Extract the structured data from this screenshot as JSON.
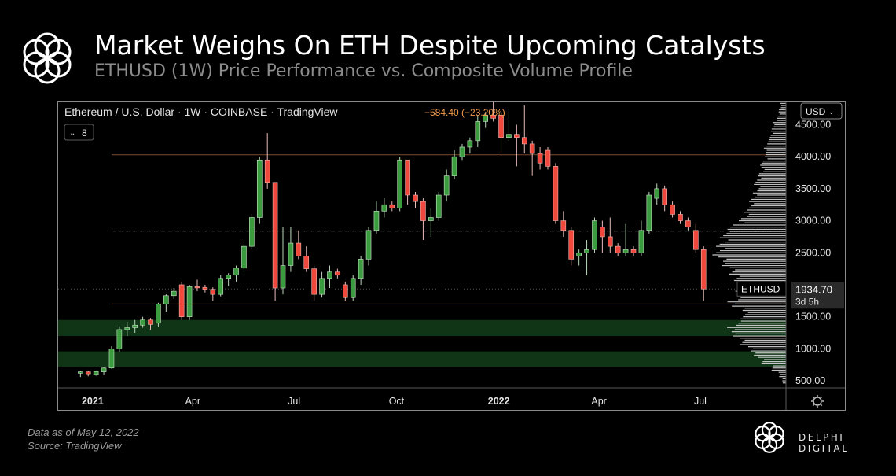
{
  "header": {
    "title": "Market Weighs On ETH Despite Upcoming Catalysts",
    "subtitle": "ETHUSD (1W) Price Performance vs. Composite Volume Profile"
  },
  "footer": {
    "data_note": "Data as of May 12, 2022",
    "source": "Source: TradingView",
    "brand": "DELPHI DIGITAL"
  },
  "chart_data": {
    "type": "candlestick",
    "info_line": "Ethereum / U.S. Dollar · 1W · COINBASE · TradingView",
    "change_text": "−584.40 (−23.20%)",
    "indicator_count": "8",
    "currency": "USD",
    "symbol": "ETHUSD",
    "last_price": "1934.70",
    "last_price_value": 1934.7,
    "countdown": "3d 5h",
    "y_tick_labels": [
      "4500.00",
      "4000.00",
      "3500.00",
      "3000.00",
      "2500.00",
      "1500.00",
      "1000.00",
      "500.00"
    ],
    "y_ticks": [
      4500,
      4000,
      3500,
      3000,
      2500,
      1500,
      1000,
      500
    ],
    "x_tick_labels": [
      "2021",
      "Apr",
      "Jul",
      "Oct",
      "2022",
      "Apr",
      "Jul"
    ],
    "x_tick_dates": [
      "2021-01-01",
      "2021-04-01",
      "2021-07-01",
      "2021-10-01",
      "2022-01-01",
      "2022-04-01",
      "2022-07-01"
    ],
    "x_range": [
      "2020-12-01",
      "2022-09-16"
    ],
    "y_range": [
      390,
      4850
    ],
    "colors": {
      "up": "#3b9c3f",
      "down": "#f0483c",
      "zone": "#0f3516",
      "level": "#7a4a2e",
      "poc": "#9a9a9a"
    },
    "horizontal_levels": [
      {
        "value": 4030,
        "style": "solid",
        "color": "#7a4a2e"
      },
      {
        "value": 1700,
        "style": "solid",
        "color": "#7a4a2e"
      },
      {
        "value": 2840,
        "style": "dashed",
        "color": "#9a9a9a"
      },
      {
        "value": 1935,
        "style": "dotted",
        "color": "#555555"
      }
    ],
    "support_zones": [
      {
        "low": 1200,
        "high": 1450
      },
      {
        "low": 720,
        "high": 960
      }
    ],
    "candles": [
      {
        "date": "2020-12-21",
        "o": 620,
        "h": 650,
        "l": 560,
        "c": 640
      },
      {
        "date": "2020-12-28",
        "o": 640,
        "h": 650,
        "l": 570,
        "c": 610
      },
      {
        "date": "2021-01-04",
        "o": 600,
        "h": 660,
        "l": 580,
        "c": 645
      },
      {
        "date": "2021-01-11",
        "o": 640,
        "h": 720,
        "l": 600,
        "c": 700
      },
      {
        "date": "2021-01-18",
        "o": 700,
        "h": 1040,
        "l": 690,
        "c": 1000
      },
      {
        "date": "2021-01-25",
        "o": 1000,
        "h": 1350,
        "l": 950,
        "c": 1300
      },
      {
        "date": "2021-02-01",
        "o": 1300,
        "h": 1420,
        "l": 1200,
        "c": 1330
      },
      {
        "date": "2021-02-08",
        "o": 1330,
        "h": 1450,
        "l": 1250,
        "c": 1370
      },
      {
        "date": "2021-02-15",
        "o": 1370,
        "h": 1500,
        "l": 1330,
        "c": 1450
      },
      {
        "date": "2021-02-22",
        "o": 1450,
        "h": 1480,
        "l": 1300,
        "c": 1380
      },
      {
        "date": "2021-03-01",
        "o": 1400,
        "h": 1720,
        "l": 1350,
        "c": 1700
      },
      {
        "date": "2021-03-08",
        "o": 1700,
        "h": 1850,
        "l": 1580,
        "c": 1830
      },
      {
        "date": "2021-03-15",
        "o": 1830,
        "h": 1950,
        "l": 1780,
        "c": 1900
      },
      {
        "date": "2021-03-22",
        "o": 2000,
        "h": 2050,
        "l": 1450,
        "c": 1500
      },
      {
        "date": "2021-03-29",
        "o": 1500,
        "h": 2000,
        "l": 1450,
        "c": 1970
      },
      {
        "date": "2021-04-05",
        "o": 1970,
        "h": 2080,
        "l": 1900,
        "c": 1960
      },
      {
        "date": "2021-04-12",
        "o": 1960,
        "h": 2000,
        "l": 1880,
        "c": 1930
      },
      {
        "date": "2021-04-19",
        "o": 1930,
        "h": 1960,
        "l": 1750,
        "c": 1850
      },
      {
        "date": "2021-04-26",
        "o": 1850,
        "h": 2150,
        "l": 1820,
        "c": 2100
      },
      {
        "date": "2021-05-03",
        "o": 2100,
        "h": 2180,
        "l": 1980,
        "c": 2150
      },
      {
        "date": "2021-05-10",
        "o": 2150,
        "h": 2300,
        "l": 2050,
        "c": 2260
      },
      {
        "date": "2021-05-17",
        "o": 2260,
        "h": 2700,
        "l": 2200,
        "c": 2600
      },
      {
        "date": "2021-05-24",
        "o": 2600,
        "h": 3100,
        "l": 2550,
        "c": 3050
      },
      {
        "date": "2021-05-31",
        "o": 3050,
        "h": 4000,
        "l": 2950,
        "c": 3950
      },
      {
        "date": "2021-06-07",
        "o": 3950,
        "h": 4370,
        "l": 3500,
        "c": 3600
      },
      {
        "date": "2021-06-14",
        "o": 3600,
        "h": 3600,
        "l": 1750,
        "c": 1950
      },
      {
        "date": "2021-06-21",
        "o": 1950,
        "h": 2900,
        "l": 1850,
        "c": 2300
      },
      {
        "date": "2021-06-28",
        "o": 2300,
        "h": 2900,
        "l": 2200,
        "c": 2650
      },
      {
        "date": "2021-07-05",
        "o": 2650,
        "h": 2850,
        "l": 2400,
        "c": 2450
      },
      {
        "date": "2021-07-12",
        "o": 2450,
        "h": 2600,
        "l": 2200,
        "c": 2250
      },
      {
        "date": "2021-07-19",
        "o": 2250,
        "h": 2300,
        "l": 1750,
        "c": 1850
      },
      {
        "date": "2021-07-26",
        "o": 1850,
        "h": 2200,
        "l": 1800,
        "c": 2100
      },
      {
        "date": "2021-08-02",
        "o": 2100,
        "h": 2300,
        "l": 1950,
        "c": 2200
      },
      {
        "date": "2021-08-09",
        "o": 2200,
        "h": 2250,
        "l": 2100,
        "c": 2150
      },
      {
        "date": "2021-08-16",
        "o": 2000,
        "h": 2050,
        "l": 1750,
        "c": 1800
      },
      {
        "date": "2021-08-23",
        "o": 1800,
        "h": 2150,
        "l": 1750,
        "c": 2100
      },
      {
        "date": "2021-08-30",
        "o": 2100,
        "h": 2450,
        "l": 2000,
        "c": 2400
      },
      {
        "date": "2021-09-06",
        "o": 2400,
        "h": 2900,
        "l": 2300,
        "c": 2850
      },
      {
        "date": "2021-09-13",
        "o": 2850,
        "h": 3300,
        "l": 2800,
        "c": 3150
      },
      {
        "date": "2021-09-20",
        "o": 3150,
        "h": 3350,
        "l": 3050,
        "c": 3250
      },
      {
        "date": "2021-09-27",
        "o": 3250,
        "h": 3300,
        "l": 3150,
        "c": 3200
      },
      {
        "date": "2021-10-04",
        "o": 3200,
        "h": 4000,
        "l": 3150,
        "c": 3950
      },
      {
        "date": "2021-10-11",
        "o": 3950,
        "h": 3950,
        "l": 3250,
        "c": 3400
      },
      {
        "date": "2021-10-18",
        "o": 3400,
        "h": 3450,
        "l": 3200,
        "c": 3300
      },
      {
        "date": "2021-10-25",
        "o": 3300,
        "h": 3350,
        "l": 2700,
        "c": 3000
      },
      {
        "date": "2021-11-01",
        "o": 3000,
        "h": 3200,
        "l": 2750,
        "c": 3050
      },
      {
        "date": "2021-11-08",
        "o": 3050,
        "h": 3450,
        "l": 3000,
        "c": 3400
      },
      {
        "date": "2021-11-15",
        "o": 3400,
        "h": 3800,
        "l": 3300,
        "c": 3700
      },
      {
        "date": "2021-11-22",
        "o": 3700,
        "h": 4100,
        "l": 3650,
        "c": 4000
      },
      {
        "date": "2021-11-29",
        "o": 4000,
        "h": 4200,
        "l": 3950,
        "c": 4150
      },
      {
        "date": "2021-12-06",
        "o": 4150,
        "h": 4300,
        "l": 4050,
        "c": 4250
      },
      {
        "date": "2021-12-13",
        "o": 4250,
        "h": 4650,
        "l": 4150,
        "c": 4550
      },
      {
        "date": "2021-12-20",
        "o": 4550,
        "h": 4700,
        "l": 4450,
        "c": 4650
      },
      {
        "date": "2021-12-27",
        "o": 4650,
        "h": 4850,
        "l": 4550,
        "c": 4600
      },
      {
        "date": "2022-01-03",
        "o": 4650,
        "h": 4700,
        "l": 4050,
        "c": 4300
      },
      {
        "date": "2022-01-10",
        "o": 4300,
        "h": 4750,
        "l": 4250,
        "c": 4350
      },
      {
        "date": "2022-01-17",
        "o": 4350,
        "h": 4500,
        "l": 3850,
        "c": 4300
      },
      {
        "date": "2022-01-24",
        "o": 4300,
        "h": 4800,
        "l": 4050,
        "c": 4200
      },
      {
        "date": "2022-01-31",
        "o": 4200,
        "h": 4250,
        "l": 3700,
        "c": 4050
      },
      {
        "date": "2022-02-07",
        "o": 4050,
        "h": 4150,
        "l": 3800,
        "c": 3900
      },
      {
        "date": "2022-02-14",
        "o": 4100,
        "h": 4150,
        "l": 3800,
        "c": 3850
      },
      {
        "date": "2022-02-21",
        "o": 3850,
        "h": 3900,
        "l": 2950,
        "c": 3000
      },
      {
        "date": "2022-02-28",
        "o": 3000,
        "h": 3150,
        "l": 2750,
        "c": 2850
      },
      {
        "date": "2022-03-07",
        "o": 2850,
        "h": 2900,
        "l": 2300,
        "c": 2400
      },
      {
        "date": "2022-03-14",
        "o": 2450,
        "h": 2550,
        "l": 2300,
        "c": 2500
      },
      {
        "date": "2022-03-21",
        "o": 2500,
        "h": 2700,
        "l": 2150,
        "c": 2550
      },
      {
        "date": "2022-03-28",
        "o": 2550,
        "h": 3050,
        "l": 2500,
        "c": 3000
      },
      {
        "date": "2022-04-04",
        "o": 2900,
        "h": 3000,
        "l": 2500,
        "c": 2750
      },
      {
        "date": "2022-04-11",
        "o": 2750,
        "h": 3050,
        "l": 2500,
        "c": 2600
      },
      {
        "date": "2022-04-18",
        "o": 2600,
        "h": 2650,
        "l": 2450,
        "c": 2500
      },
      {
        "date": "2022-04-25",
        "o": 2500,
        "h": 2950,
        "l": 2450,
        "c": 2550
      },
      {
        "date": "2022-05-02",
        "o": 2550,
        "h": 2600,
        "l": 2450,
        "c": 2500
      },
      {
        "date": "2022-05-09",
        "o": 2500,
        "h": 3000,
        "l": 2450,
        "c": 2850
      },
      {
        "date": "2022-05-16",
        "o": 2850,
        "h": 3450,
        "l": 2800,
        "c": 3400
      },
      {
        "date": "2022-05-23",
        "o": 3350,
        "h": 3580,
        "l": 3250,
        "c": 3500
      },
      {
        "date": "2022-05-30",
        "o": 3500,
        "h": 3550,
        "l": 3150,
        "c": 3250
      },
      {
        "date": "2022-06-06",
        "o": 3250,
        "h": 3300,
        "l": 3050,
        "c": 3100
      },
      {
        "date": "2022-06-13",
        "o": 3100,
        "h": 3150,
        "l": 2950,
        "c": 3000
      },
      {
        "date": "2022-06-20",
        "o": 3000,
        "h": 3050,
        "l": 2850,
        "c": 2900
      },
      {
        "date": "2022-06-27",
        "o": 2850,
        "h": 2950,
        "l": 2500,
        "c": 2550
      },
      {
        "date": "2022-07-04",
        "o": 2550,
        "h": 2600,
        "l": 1750,
        "c": 1935
      }
    ],
    "volume_profile": [
      {
        "price": 4800,
        "weight": 0.06
      },
      {
        "price": 4700,
        "weight": 0.08
      },
      {
        "price": 4600,
        "weight": 0.1
      },
      {
        "price": 4500,
        "weight": 0.14
      },
      {
        "price": 4400,
        "weight": 0.16
      },
      {
        "price": 4300,
        "weight": 0.18
      },
      {
        "price": 4200,
        "weight": 0.22
      },
      {
        "price": 4100,
        "weight": 0.24
      },
      {
        "price": 4000,
        "weight": 0.23
      },
      {
        "price": 3900,
        "weight": 0.28
      },
      {
        "price": 3800,
        "weight": 0.26
      },
      {
        "price": 3700,
        "weight": 0.3
      },
      {
        "price": 3600,
        "weight": 0.34
      },
      {
        "price": 3500,
        "weight": 0.32
      },
      {
        "price": 3400,
        "weight": 0.36
      },
      {
        "price": 3300,
        "weight": 0.4
      },
      {
        "price": 3200,
        "weight": 0.42
      },
      {
        "price": 3100,
        "weight": 0.45
      },
      {
        "price": 3000,
        "weight": 0.5
      },
      {
        "price": 2900,
        "weight": 0.62
      },
      {
        "price": 2800,
        "weight": 0.7
      },
      {
        "price": 2700,
        "weight": 0.72
      },
      {
        "price": 2600,
        "weight": 0.76
      },
      {
        "price": 2500,
        "weight": 0.8
      },
      {
        "price": 2400,
        "weight": 0.72
      },
      {
        "price": 2300,
        "weight": 0.68
      },
      {
        "price": 2200,
        "weight": 0.6
      },
      {
        "price": 2100,
        "weight": 0.58
      },
      {
        "price": 2000,
        "weight": 0.5
      },
      {
        "price": 1900,
        "weight": 0.55
      },
      {
        "price": 1800,
        "weight": 0.52
      },
      {
        "price": 1700,
        "weight": 0.62
      },
      {
        "price": 1600,
        "weight": 0.46
      },
      {
        "price": 1500,
        "weight": 0.48
      },
      {
        "price": 1400,
        "weight": 0.56
      },
      {
        "price": 1300,
        "weight": 0.64
      },
      {
        "price": 1200,
        "weight": 0.58
      },
      {
        "price": 1100,
        "weight": 0.5
      },
      {
        "price": 1000,
        "weight": 0.4
      },
      {
        "price": 900,
        "weight": 0.34
      },
      {
        "price": 800,
        "weight": 0.26
      },
      {
        "price": 700,
        "weight": 0.16
      },
      {
        "price": 600,
        "weight": 0.08
      },
      {
        "price": 500,
        "weight": 0.04
      }
    ]
  }
}
